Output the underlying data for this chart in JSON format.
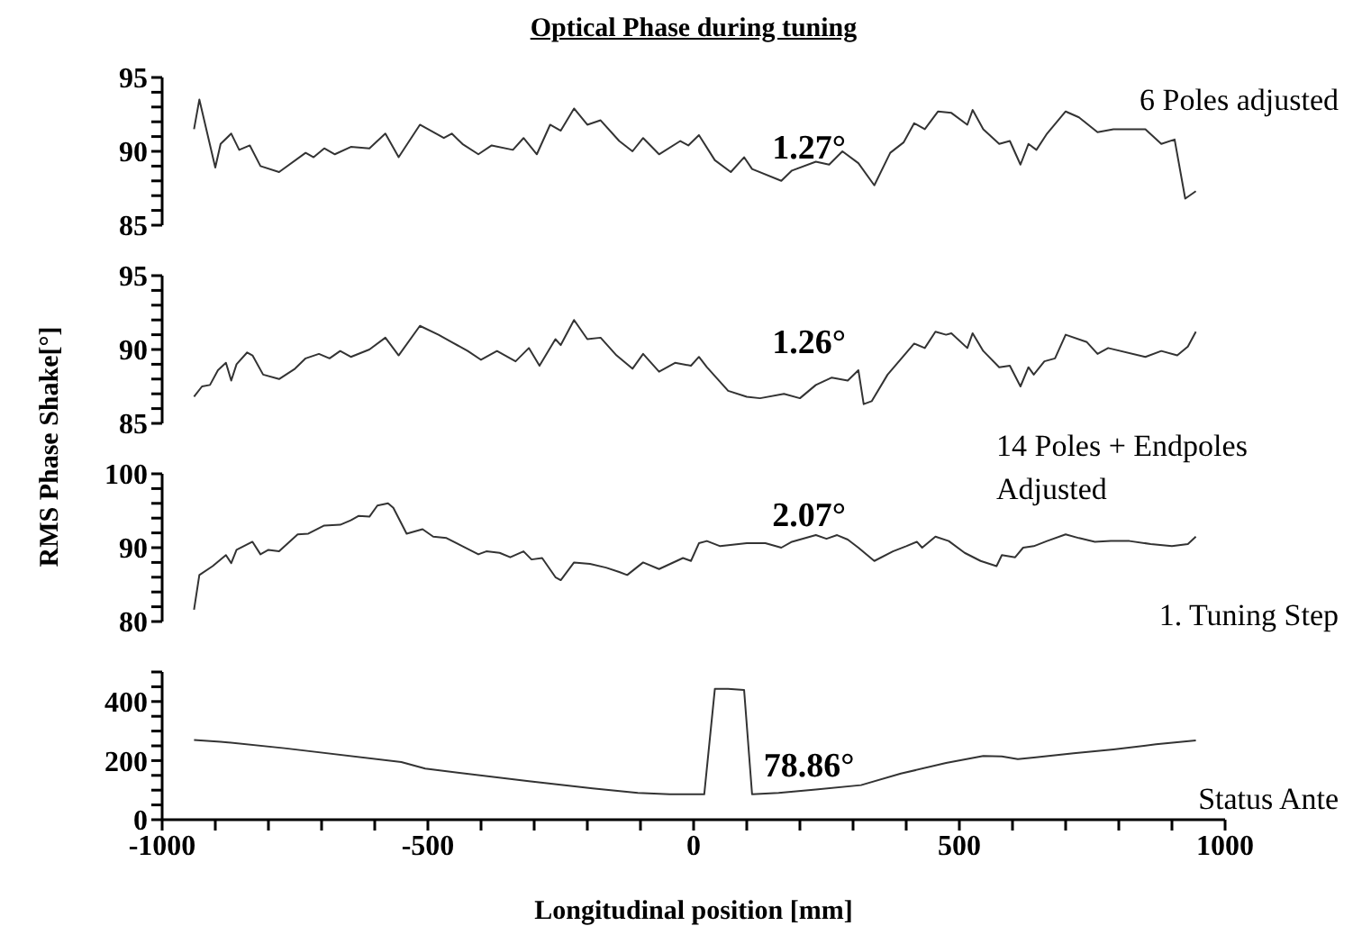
{
  "chart_data": [
    {
      "type": "line",
      "title": "Optical Phase during tuning",
      "ylabel": "RMS Phase Shake[°]",
      "annotations": [
        "1.27°"
      ],
      "xlim": [
        -1000,
        1000
      ],
      "ylim": [
        85,
        95
      ],
      "tick_labels": "y",
      "yticks": [
        85,
        {
          "value": 86,
          "label": null
        },
        {
          "value": 87,
          "label": null
        },
        {
          "value": 88,
          "label": null
        },
        {
          "value": 89,
          "label": null
        },
        90,
        {
          "value": 91,
          "label": null
        },
        {
          "value": 92,
          "label": null
        },
        {
          "value": 93,
          "label": null
        },
        {
          "value": 94,
          "label": null
        },
        95
      ],
      "x": [
        -940,
        -930,
        -900,
        -890,
        -870,
        -855,
        -835,
        -815,
        -780,
        -730,
        -715,
        -695,
        -675,
        -645,
        -610,
        -580,
        -555,
        -515,
        -470,
        -455,
        -435,
        -405,
        -380,
        -340,
        -320,
        -295,
        -270,
        -250,
        -225,
        -200,
        -175,
        -140,
        -115,
        -95,
        -65,
        -25,
        -10,
        10,
        40,
        70,
        95,
        110,
        165,
        185,
        230,
        255,
        280,
        310,
        340,
        370,
        395,
        415,
        435,
        460,
        485,
        515,
        525,
        545,
        575,
        595,
        615,
        630,
        645,
        665,
        700,
        725,
        760,
        790,
        850,
        880,
        905,
        925,
        945
      ],
      "series": [
        {
          "name": "6 Poles adjusted",
          "color": "#333333",
          "values": [
            91.5,
            93.5,
            88.9,
            90.5,
            91.2,
            90.1,
            90.4,
            89.0,
            88.6,
            89.9,
            89.6,
            90.2,
            89.8,
            90.3,
            90.2,
            91.2,
            89.6,
            91.8,
            90.9,
            91.2,
            90.5,
            89.8,
            90.4,
            90.1,
            90.9,
            89.8,
            91.8,
            91.4,
            92.9,
            91.8,
            92.1,
            90.7,
            90.0,
            90.9,
            89.8,
            90.7,
            90.4,
            91.1,
            89.4,
            88.6,
            89.6,
            88.8,
            88.0,
            88.7,
            89.3,
            89.1,
            90.0,
            89.2,
            87.7,
            89.9,
            90.6,
            91.9,
            91.5,
            92.7,
            92.6,
            91.8,
            92.8,
            91.5,
            90.5,
            90.7,
            89.1,
            90.5,
            90.1,
            91.2,
            92.7,
            92.3,
            91.3,
            91.5,
            91.5,
            90.5,
            90.8,
            86.8,
            87.3
          ]
        }
      ]
    },
    {
      "type": "line",
      "annotations": [
        "1.26°"
      ],
      "xlim": [
        -1000,
        1000
      ],
      "ylim": [
        85,
        95
      ],
      "tick_labels": "y",
      "yticks": [
        85,
        {
          "value": 86,
          "label": null
        },
        {
          "value": 87,
          "label": null
        },
        {
          "value": 88,
          "label": null
        },
        {
          "value": 89,
          "label": null
        },
        90,
        {
          "value": 91,
          "label": null
        },
        {
          "value": 92,
          "label": null
        },
        {
          "value": 93,
          "label": null
        },
        {
          "value": 94,
          "label": null
        },
        95
      ],
      "x": [
        -940,
        -925,
        -910,
        -895,
        -880,
        -870,
        -860,
        -840,
        -830,
        -810,
        -780,
        -750,
        -730,
        -705,
        -685,
        -665,
        -645,
        -610,
        -580,
        -555,
        -515,
        -480,
        -455,
        -425,
        -400,
        -370,
        -335,
        -310,
        -290,
        -260,
        -250,
        -225,
        -200,
        -175,
        -145,
        -115,
        -95,
        -65,
        -35,
        -5,
        10,
        25,
        65,
        100,
        125,
        170,
        200,
        230,
        260,
        290,
        310,
        320,
        335,
        365,
        415,
        435,
        455,
        475,
        485,
        515,
        525,
        545,
        575,
        595,
        615,
        630,
        640,
        660,
        680,
        700,
        740,
        760,
        780,
        850,
        880,
        910,
        930,
        945
      ],
      "series": [
        {
          "name": "14 Poles + Endpoles Adjusted",
          "color": "#333333",
          "values": [
            86.8,
            87.5,
            87.6,
            88.6,
            89.1,
            87.9,
            89.0,
            89.8,
            89.6,
            88.3,
            88.0,
            88.7,
            89.4,
            89.7,
            89.4,
            89.9,
            89.5,
            90.0,
            90.8,
            89.6,
            91.6,
            91.0,
            90.5,
            89.9,
            89.3,
            89.9,
            89.2,
            90.1,
            88.9,
            90.7,
            90.3,
            92.0,
            90.7,
            90.8,
            89.6,
            88.7,
            89.7,
            88.5,
            89.1,
            88.9,
            89.5,
            88.8,
            87.2,
            86.8,
            86.7,
            87.0,
            86.7,
            87.6,
            88.1,
            87.9,
            88.6,
            86.3,
            86.5,
            88.3,
            90.4,
            90.1,
            91.2,
            91.0,
            91.1,
            90.1,
            91.1,
            89.9,
            88.8,
            88.9,
            87.5,
            88.8,
            88.3,
            89.2,
            89.4,
            91.0,
            90.5,
            89.7,
            90.1,
            89.5,
            89.9,
            89.6,
            90.2,
            91.2
          ]
        }
      ]
    },
    {
      "type": "line",
      "annotations": [
        "2.07°"
      ],
      "xlim": [
        -1000,
        1000
      ],
      "ylim": [
        80,
        100
      ],
      "tick_labels": "y",
      "yticks": [
        80,
        {
          "value": 82,
          "label": null
        },
        {
          "value": 84,
          "label": null
        },
        {
          "value": 86,
          "label": null
        },
        {
          "value": 88,
          "label": null
        },
        90,
        {
          "value": 92,
          "label": null
        },
        {
          "value": 94,
          "label": null
        },
        {
          "value": 96,
          "label": null
        },
        {
          "value": 98,
          "label": null
        },
        100
      ],
      "x": [
        -940,
        -930,
        -905,
        -880,
        -870,
        -860,
        -830,
        -815,
        -800,
        -780,
        -745,
        -725,
        -695,
        -665,
        -645,
        -630,
        -610,
        -595,
        -575,
        -565,
        -540,
        -510,
        -490,
        -465,
        -435,
        -405,
        -390,
        -365,
        -345,
        -320,
        -305,
        -285,
        -260,
        -250,
        -225,
        -195,
        -165,
        -140,
        -125,
        -95,
        -65,
        -20,
        -5,
        10,
        25,
        50,
        100,
        135,
        165,
        185,
        230,
        250,
        270,
        290,
        310,
        340,
        375,
        400,
        420,
        430,
        455,
        480,
        510,
        540,
        570,
        580,
        605,
        620,
        640,
        665,
        700,
        725,
        755,
        785,
        820,
        860,
        900,
        930,
        945
      ],
      "series": [
        {
          "name": "1. Tuning Step",
          "color": "#333333",
          "values": [
            81.6,
            86.3,
            87.5,
            89.0,
            87.9,
            89.7,
            90.8,
            89.1,
            89.7,
            89.5,
            91.8,
            91.9,
            93.0,
            93.1,
            93.7,
            94.3,
            94.2,
            95.7,
            96.0,
            95.4,
            91.9,
            92.5,
            91.5,
            91.3,
            90.2,
            89.1,
            89.5,
            89.3,
            88.7,
            89.5,
            88.4,
            88.6,
            86.0,
            85.6,
            88.0,
            87.8,
            87.3,
            86.7,
            86.3,
            88.0,
            87.1,
            88.6,
            88.2,
            90.6,
            90.9,
            90.2,
            90.6,
            90.6,
            90.0,
            90.8,
            91.7,
            91.2,
            91.7,
            91.1,
            90.0,
            88.2,
            89.5,
            90.2,
            90.8,
            90.0,
            91.5,
            90.9,
            89.3,
            88.2,
            87.5,
            89.0,
            88.7,
            90.0,
            90.2,
            90.9,
            91.8,
            91.3,
            90.8,
            90.9,
            90.9,
            90.5,
            90.2,
            90.5,
            91.5
          ]
        }
      ]
    },
    {
      "type": "line",
      "xlabel": "Longitudinal position [mm]",
      "annotations": [
        "78.86°"
      ],
      "xlim": [
        -1000,
        1000
      ],
      "ylim": [
        0,
        500
      ],
      "xticks": [
        -1000,
        {
          "value": -900,
          "label": null
        },
        {
          "value": -800,
          "label": null
        },
        {
          "value": -700,
          "label": null
        },
        {
          "value": -600,
          "label": null
        },
        -500,
        {
          "value": -400,
          "label": null
        },
        {
          "value": -300,
          "label": null
        },
        {
          "value": -200,
          "label": null
        },
        {
          "value": -100,
          "label": null
        },
        0,
        {
          "value": 100,
          "label": null
        },
        {
          "value": 200,
          "label": null
        },
        {
          "value": 300,
          "label": null
        },
        {
          "value": 400,
          "label": null
        },
        500,
        {
          "value": 600,
          "label": null
        },
        {
          "value": 700,
          "label": null
        },
        {
          "value": 800,
          "label": null
        },
        {
          "value": 900,
          "label": null
        },
        1000
      ],
      "yticks": [
        0,
        {
          "value": 50,
          "label": null
        },
        {
          "value": 100,
          "label": null
        },
        {
          "value": 150,
          "label": null
        },
        200,
        {
          "value": 250,
          "label": null
        },
        {
          "value": 300,
          "label": null
        },
        {
          "value": 350,
          "label": null
        },
        400,
        {
          "value": 450,
          "label": null
        },
        {
          "value": 500,
          "label": null
        }
      ],
      "x": [
        -940,
        -890,
        -770,
        -550,
        -505,
        -310,
        -190,
        -105,
        -45,
        20,
        40,
        65,
        95,
        110,
        160,
        230,
        315,
        390,
        475,
        545,
        580,
        610,
        640,
        715,
        790,
        870,
        945
      ],
      "series": [
        {
          "name": "Status Ante",
          "color": "#333333",
          "values": [
            270,
            264,
            242,
            195,
            173,
            130,
            106,
            91,
            86,
            86,
            443,
            443,
            439,
            86,
            91,
            102,
            117,
            156,
            192,
            216,
            214,
            205,
            210,
            225,
            238,
            255,
            268
          ]
        }
      ]
    }
  ]
}
